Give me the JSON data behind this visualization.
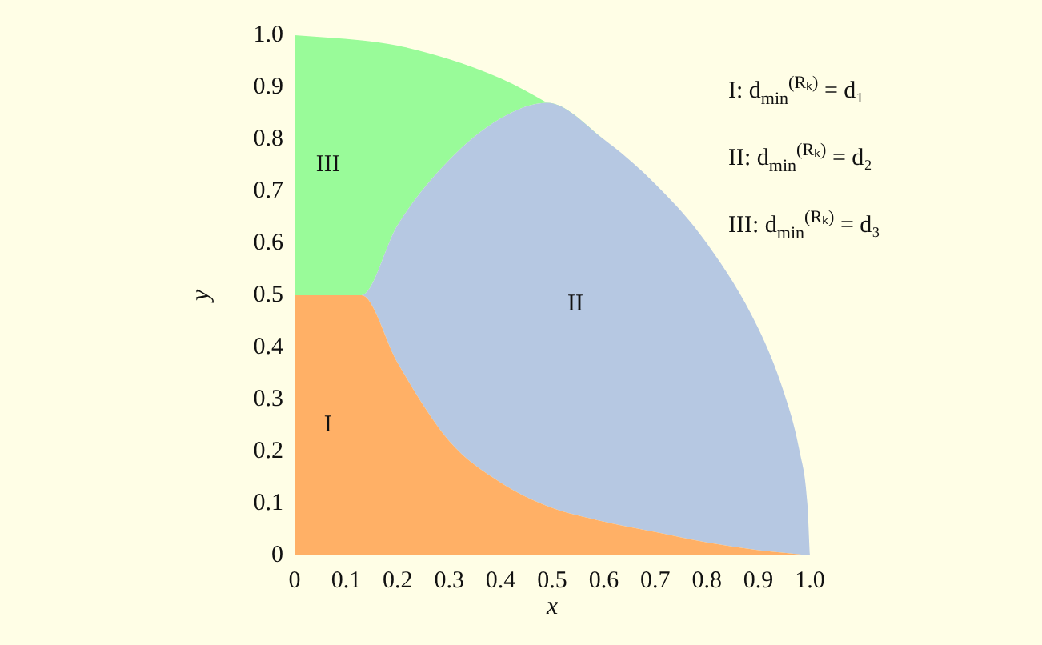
{
  "chart_data": {
    "type": "area",
    "stacked": true,
    "xlabel": "x",
    "ylabel": "y",
    "x": [
      0,
      0.13,
      0.2,
      0.3,
      0.4,
      0.49,
      0.6,
      0.7,
      0.8,
      0.9,
      0.95,
      0.98,
      0.995,
      1
    ],
    "series": [
      {
        "name": "I",
        "color": "#ffb066",
        "values": [
          0.5,
          0.5,
          0.37,
          0.22,
          0.14,
          0.095,
          0.065,
          0.045,
          0.025,
          0.01,
          0.005,
          0.002,
          0,
          0
        ]
      },
      {
        "name": "II",
        "color": "#b6c8e2",
        "values": [
          0,
          0,
          0.265,
          0.54,
          0.7,
          0.775,
          0.735,
          0.669,
          0.575,
          0.426,
          0.307,
          0.198,
          0.1,
          0
        ]
      },
      {
        "name": "III",
        "color": "#99fb99",
        "values": [
          0.5,
          0.49,
          0.345,
          0.194,
          0.077,
          0,
          0,
          0,
          0,
          0,
          0,
          0,
          0,
          0
        ]
      }
    ],
    "xlim": [
      0,
      1
    ],
    "ylim": [
      0,
      1
    ],
    "xticks": [
      0,
      0.1,
      0.2,
      0.3,
      0.4,
      0.5,
      0.6,
      0.7,
      0.8,
      0.9,
      {
        "value": 1,
        "label": "1.0"
      }
    ],
    "yticks": [
      0,
      0.1,
      0.2,
      0.3,
      0.4,
      0.5,
      0.6,
      0.7,
      0.8,
      0.9,
      {
        "value": 1,
        "label": "1.0"
      }
    ],
    "grid": false,
    "legend": false,
    "annotations": [
      "I: d$_{min}$$^{(Rₖ)}$ = d₁",
      "II: d$_{min}$$^{(Rₖ)}$ = d₂",
      "III: d$_{min}$$^{(Rₖ)}$ = d₃"
    ]
  }
}
